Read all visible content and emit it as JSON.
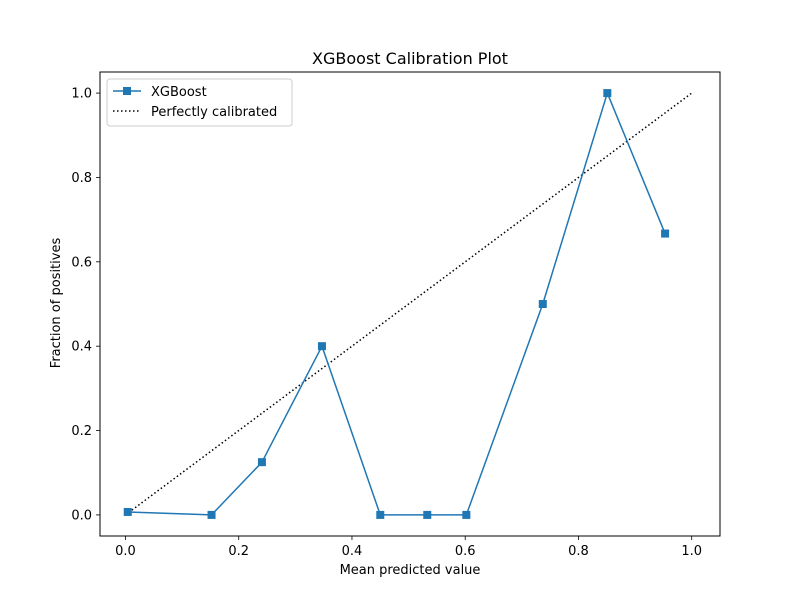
{
  "chart_data": {
    "type": "line",
    "title": "XGBoost Calibration Plot",
    "xlabel": "Mean predicted value",
    "ylabel": "Fraction of positives",
    "xlim": [
      -0.045,
      1.05
    ],
    "ylim": [
      -0.05,
      1.05
    ],
    "xticks": [
      0.0,
      0.2,
      0.4,
      0.6,
      0.8,
      1.0
    ],
    "yticks": [
      0.0,
      0.2,
      0.4,
      0.6,
      0.8,
      1.0
    ],
    "xtick_labels": [
      "0.0",
      "0.2",
      "0.4",
      "0.6",
      "0.8",
      "1.0"
    ],
    "ytick_labels": [
      "0.0",
      "0.2",
      "0.4",
      "0.6",
      "0.8",
      "1.0"
    ],
    "grid": false,
    "legend_position": "upper-left",
    "series": [
      {
        "name": "XGBoost",
        "style": "solid",
        "marker": "square",
        "color": "#1f77b4",
        "x": [
          0.004,
          0.152,
          0.241,
          0.347,
          0.45,
          0.533,
          0.602,
          0.737,
          0.851,
          0.953
        ],
        "y": [
          0.007,
          0.0,
          0.125,
          0.4,
          0.0,
          0.0,
          0.0,
          0.5,
          1.0,
          0.667
        ]
      },
      {
        "name": "Perfectly calibrated",
        "style": "dotted",
        "marker": "none",
        "color": "#000000",
        "x": [
          0.0,
          1.0
        ],
        "y": [
          0.0,
          1.0
        ]
      }
    ]
  }
}
